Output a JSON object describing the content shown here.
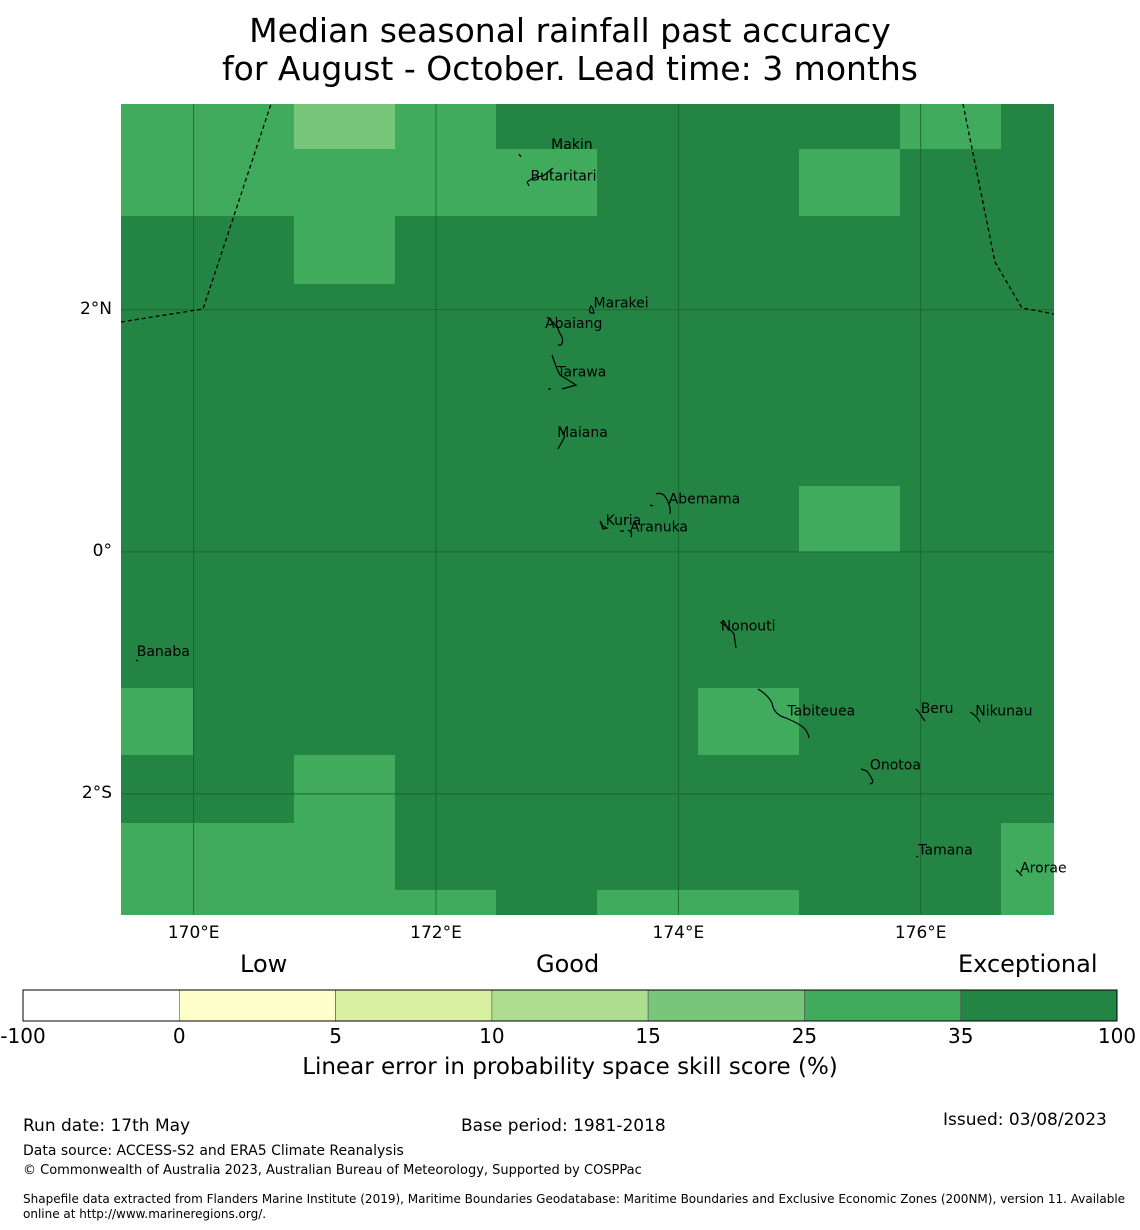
{
  "title": {
    "line1": "Median seasonal rainfall past accuracy",
    "line2": "for August - October. Lead time: 3 months"
  },
  "map": {
    "lon_range": [
      169.4,
      177.1
    ],
    "lat_range": [
      -3.0,
      3.7
    ],
    "lon_ticks": [
      {
        "value": 170,
        "label": "170°E"
      },
      {
        "value": 172,
        "label": "172°E"
      },
      {
        "value": 174,
        "label": "174°E"
      },
      {
        "value": 176,
        "label": "176°E"
      }
    ],
    "lat_ticks": [
      {
        "value": 2,
        "label": "2°N"
      },
      {
        "value": 0,
        "label": "0°"
      },
      {
        "value": -2,
        "label": "2°S"
      }
    ],
    "grid_on": true,
    "class_colors": {
      "2": "#41ab5d",
      "3": "#238443",
      "4": "#78c679"
    },
    "grid_cells": [
      [
        2,
        2,
        4,
        2,
        3,
        3,
        3,
        3,
        2,
        3
      ],
      [
        2,
        2,
        2,
        2,
        2,
        3,
        3,
        2,
        3,
        3
      ],
      [
        3,
        3,
        2,
        3,
        3,
        3,
        3,
        3,
        3,
        3
      ],
      [
        3,
        3,
        3,
        3,
        3,
        3,
        3,
        3,
        3,
        3
      ],
      [
        3,
        3,
        3,
        3,
        3,
        3,
        3,
        3,
        3,
        3
      ],
      [
        3,
        3,
        3,
        3,
        3,
        3,
        3,
        3,
        3,
        3
      ],
      [
        3,
        3,
        3,
        3,
        3,
        3,
        3,
        2,
        3,
        3
      ],
      [
        3,
        3,
        3,
        3,
        3,
        3,
        3,
        3,
        3,
        3
      ],
      [
        3,
        3,
        3,
        3,
        3,
        3,
        3,
        3,
        3,
        3
      ],
      [
        2,
        3,
        3,
        3,
        3,
        3,
        2,
        3,
        3,
        3
      ],
      [
        3,
        3,
        2,
        3,
        3,
        3,
        3,
        3,
        3,
        3
      ],
      [
        2,
        2,
        2,
        3,
        3,
        3,
        3,
        3,
        3,
        2
      ],
      [
        2,
        2,
        2,
        2,
        3,
        2,
        2,
        3,
        3,
        2
      ]
    ],
    "places": [
      {
        "name": "Makin",
        "lon": 172.95,
        "lat": 3.33
      },
      {
        "name": "Butaritari",
        "lon": 172.78,
        "lat": 3.07
      },
      {
        "name": "Marakei",
        "lon": 173.3,
        "lat": 2.02
      },
      {
        "name": "Abaiang",
        "lon": 172.9,
        "lat": 1.85
      },
      {
        "name": "Tarawa",
        "lon": 173.0,
        "lat": 1.45
      },
      {
        "name": "Maiana",
        "lon": 173.0,
        "lat": 0.95
      },
      {
        "name": "Abemama",
        "lon": 173.92,
        "lat": 0.4
      },
      {
        "name": "Kuria",
        "lon": 173.4,
        "lat": 0.22
      },
      {
        "name": "Aranuka",
        "lon": 173.6,
        "lat": 0.17
      },
      {
        "name": "Nonouti",
        "lon": 174.35,
        "lat": -0.65
      },
      {
        "name": "Banaba",
        "lon": 169.53,
        "lat": -0.86
      },
      {
        "name": "Tabiteuea",
        "lon": 174.9,
        "lat": -1.35
      },
      {
        "name": "Beru",
        "lon": 176.0,
        "lat": -1.33
      },
      {
        "name": "Nikunau",
        "lon": 176.45,
        "lat": -1.35
      },
      {
        "name": "Onotoa",
        "lon": 175.58,
        "lat": -1.8
      },
      {
        "name": "Tamana",
        "lon": 175.98,
        "lat": -2.5
      },
      {
        "name": "Arorae",
        "lon": 176.82,
        "lat": -2.65
      }
    ]
  },
  "colorbar": {
    "headings": {
      "low": "Low",
      "good": "Good",
      "exceptional": "Exceptional"
    },
    "colors": [
      "#ffffff",
      "#ffffcc",
      "#d9f0a3",
      "#addd8e",
      "#78c679",
      "#41ab5d",
      "#238443"
    ],
    "ticks": [
      "-100",
      "0",
      "5",
      "10",
      "15",
      "25",
      "35",
      "100"
    ],
    "label": "Linear error in probability space skill score (%)"
  },
  "footer": {
    "run_date": "Run date: 17th May",
    "base_period": "Base period: 1981-2018",
    "issued": "Issued: 03/08/2023",
    "data_source": "Data source: ACCESS-S2 and ERA5 Climate Reanalysis",
    "copyright": "© Commonwealth of Australia 2023, Australian Bureau of Meteorology, Supported by COSPPac",
    "shapefile_line1": "Shapefile data extracted from Flanders Marine Institute (2019), Maritime Boundaries Geodatabase: Maritime Boundaries and Exclusive Economic Zones (200NM), version 11. Available",
    "shapefile_line2": "online at http://www.marineregions.org/."
  }
}
